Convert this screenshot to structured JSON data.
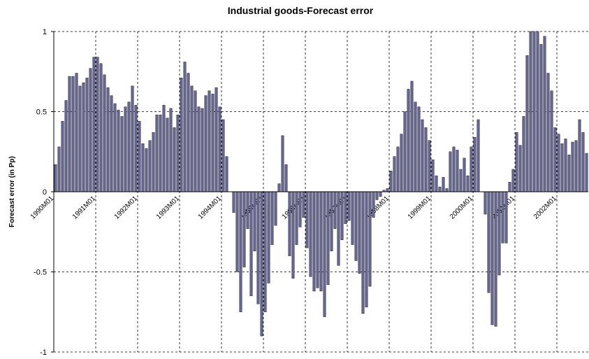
{
  "chart_data": {
    "type": "bar",
    "title": "Industrial goods-Forecast error",
    "y_label": "Forecast error (in Pp)",
    "categories": [
      "1990M01",
      null,
      null,
      null,
      null,
      null,
      null,
      null,
      null,
      null,
      null,
      null,
      "1991M01",
      null,
      null,
      null,
      null,
      null,
      null,
      null,
      null,
      null,
      null,
      null,
      "1992M01",
      null,
      null,
      null,
      null,
      null,
      null,
      null,
      null,
      null,
      null,
      null,
      "1993M01",
      null,
      null,
      null,
      null,
      null,
      null,
      null,
      null,
      null,
      null,
      null,
      "1994M01",
      null,
      null,
      null,
      null,
      null,
      null,
      null,
      null,
      null,
      null,
      null,
      "1995M01",
      null,
      null,
      null,
      null,
      null,
      null,
      null,
      null,
      null,
      null,
      null,
      "1996M01",
      null,
      null,
      null,
      null,
      null,
      null,
      null,
      null,
      null,
      null,
      null,
      "1997M01",
      null,
      null,
      null,
      null,
      null,
      null,
      null,
      null,
      null,
      null,
      null,
      "1998M01",
      null,
      null,
      null,
      null,
      null,
      null,
      null,
      null,
      null,
      null,
      null,
      "1999M01",
      null,
      null,
      null,
      null,
      null,
      null,
      null,
      null,
      null,
      null,
      null,
      "2000M01",
      null,
      null,
      null,
      null,
      null,
      null,
      null,
      null,
      null,
      null,
      null,
      "2001M01",
      null,
      null,
      null,
      null,
      null,
      null,
      null,
      null,
      null,
      null,
      null,
      "2002M01",
      null,
      null,
      null,
      null,
      null,
      null,
      null,
      null
    ],
    "values": [
      0.17,
      0.28,
      0.44,
      0.57,
      0.72,
      0.72,
      0.74,
      0.66,
      0.68,
      0.71,
      0.77,
      0.84,
      0.84,
      0.8,
      0.73,
      0.65,
      0.6,
      0.55,
      0.51,
      0.47,
      0.53,
      0.56,
      0.66,
      0.54,
      0.44,
      0.3,
      0.27,
      0.32,
      0.37,
      0.48,
      0.48,
      0.54,
      0.46,
      0.52,
      0.4,
      0.48,
      0.71,
      0.81,
      0.74,
      0.66,
      0.63,
      0.53,
      0.52,
      0.6,
      0.63,
      0.61,
      0.65,
      0.53,
      0.45,
      0.22,
      0,
      -0.13,
      -0.5,
      -0.75,
      -0.47,
      -0.23,
      -0.65,
      -0.37,
      -0.7,
      -0.9,
      -0.75,
      -0.57,
      -0.33,
      -0.21,
      0.05,
      0.35,
      0.17,
      -0.4,
      -0.54,
      -0.33,
      -0.22,
      -0.16,
      -0.35,
      -0.53,
      -0.62,
      -0.6,
      -0.62,
      -0.78,
      -0.58,
      -0.37,
      -0.23,
      -0.46,
      -0.3,
      -0.2,
      -0.18,
      -0.33,
      -0.43,
      -0.51,
      -0.76,
      -0.72,
      -0.59,
      -0.16,
      -0.05,
      -0.03,
      0.01,
      0.02,
      0.13,
      0.22,
      0.28,
      0.36,
      0.5,
      0.64,
      0.69,
      0.56,
      0.53,
      0.45,
      0.4,
      0.32,
      0.2,
      0.1,
      0.03,
      0.09,
      0.02,
      0.25,
      0.28,
      0.26,
      0.14,
      0.21,
      0.1,
      0.28,
      0.34,
      0.45,
      0,
      -0.14,
      -0.63,
      -0.83,
      -0.84,
      -0.52,
      -0.32,
      -0.32,
      0.06,
      0.14,
      0.37,
      0.29,
      0.47,
      0.85,
      1.0,
      1.0,
      1.0,
      0.92,
      0.97,
      0.74,
      0.63,
      0.4,
      0.36,
      0.3,
      0.33,
      0.23,
      0.31,
      0.32,
      0.45,
      0.37,
      0.24
    ],
    "color": "#666699",
    "ylim": [
      -1,
      1
    ],
    "yticks": [
      -1,
      -0.5,
      0,
      0.5,
      1
    ],
    "grid": true
  }
}
